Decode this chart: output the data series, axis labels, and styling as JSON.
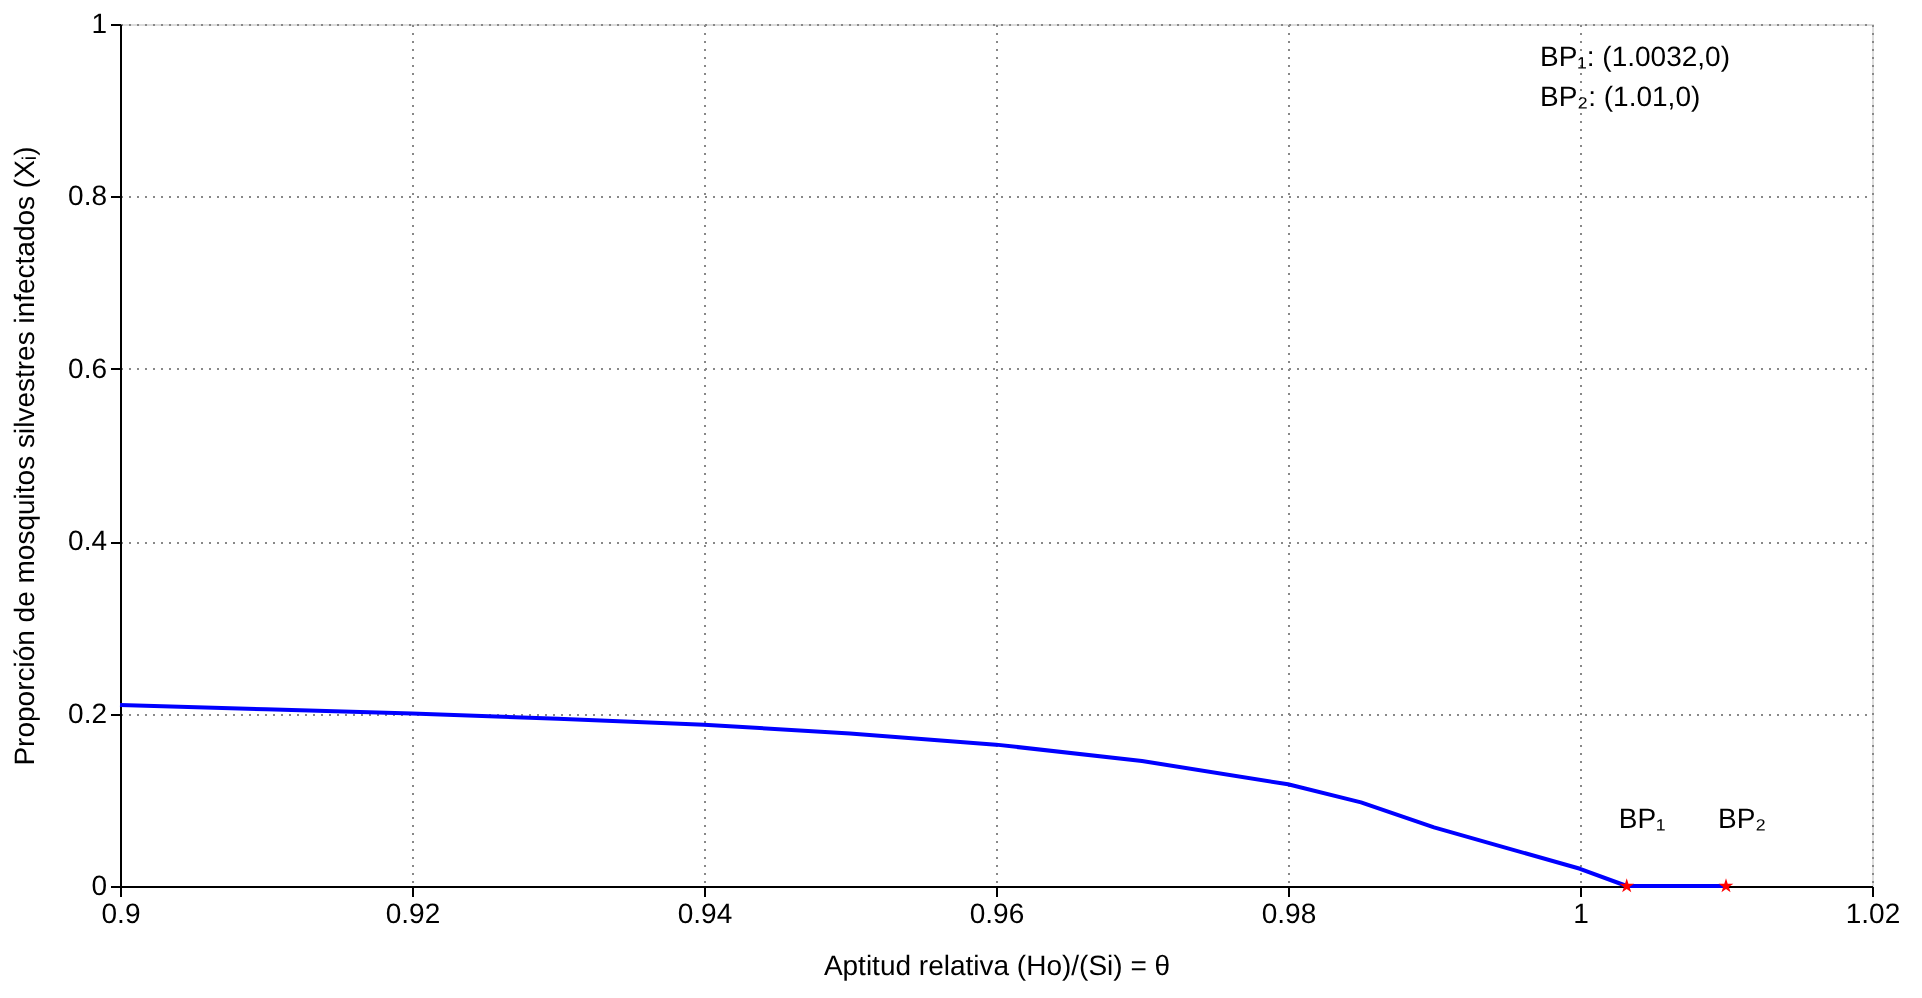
{
  "chart_data": {
    "type": "line",
    "xlabel": "Aptitud relativa (Ho)/(Si) = θ",
    "ylabel": "Proporción de mosquitos silvestres infectados (Xᵢ)",
    "xlim": [
      0.9,
      1.02
    ],
    "xticks": [
      0.9,
      0.92,
      0.94,
      0.96,
      0.98,
      1,
      1.02
    ],
    "ylim": [
      0,
      1
    ],
    "yticks": [
      0,
      0.2,
      0.4,
      0.6,
      0.8,
      1
    ],
    "grid": true,
    "line_style": "solid",
    "series": [
      {
        "color": "#0000ff",
        "marker": "none",
        "x": [
          0.9,
          0.91,
          0.92,
          0.93,
          0.94,
          0.95,
          0.96,
          0.97,
          0.98,
          0.985,
          0.99,
          0.995,
          1.0,
          1.0032,
          1.01
        ],
        "values": [
          0.21,
          0.205,
          0.2,
          0.194,
          0.187,
          0.177,
          0.164,
          0.145,
          0.118,
          0.097,
          0.068,
          0.044,
          0.02,
          0,
          0
        ]
      },
      {
        "type": "scatter",
        "color": "#ff0000",
        "marker": "star",
        "x": [
          1.0032,
          1.01
        ],
        "values": [
          0,
          0
        ]
      }
    ],
    "annotations": [
      {
        "text": "BP₁",
        "x": 1.0032,
        "y": 0
      },
      {
        "text": "BP₂",
        "x": 1.01,
        "y": 0
      },
      "BP₁: (1.0032,0)",
      "BP₂: (1.01,0)"
    ]
  }
}
